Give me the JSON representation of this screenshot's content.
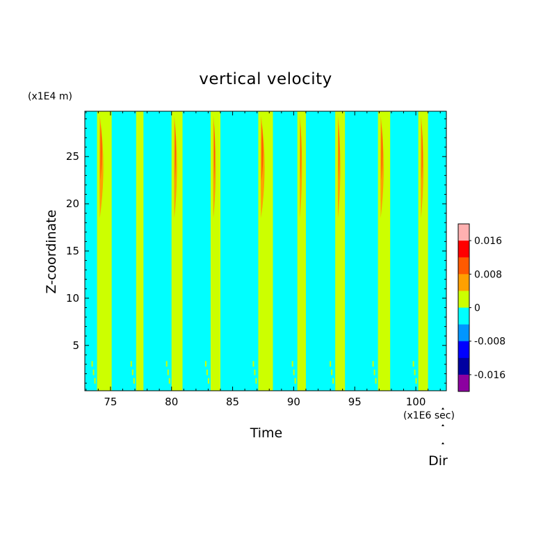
{
  "chart_data": {
    "type": "heatmap",
    "title": "vertical velocity",
    "xlabel": "Time",
    "ylabel": "Z-coordinate",
    "x_unit": "(x1E6 sec)",
    "y_unit": "(x1E4 m)",
    "xlim": [
      72.9,
      102.5
    ],
    "ylim": [
      0.2,
      29.8
    ],
    "x_ticks": [
      75,
      80,
      85,
      90,
      95,
      100
    ],
    "y_ticks": [
      5,
      10,
      15,
      20,
      25
    ],
    "background_level": "-0.004 to 0",
    "bands": [
      {
        "start": 73.9,
        "end": 75.1,
        "peak": "0.004 to 0.008"
      },
      {
        "start": 77.1,
        "end": 77.7,
        "peak": "0 to 0.004"
      },
      {
        "start": 80.0,
        "end": 80.9,
        "peak": "0.004 to 0.008"
      },
      {
        "start": 83.2,
        "end": 84.0,
        "peak": "0.004 to 0.008"
      },
      {
        "start": 87.1,
        "end": 88.3,
        "peak": "0.004 to 0.008"
      },
      {
        "start": 90.3,
        "end": 91.0,
        "peak": "0.004 to 0.008"
      },
      {
        "start": 93.4,
        "end": 94.2,
        "peak": "0.004 to 0.008"
      },
      {
        "start": 96.9,
        "end": 97.9,
        "peak": "0.004 to 0.008"
      },
      {
        "start": 100.2,
        "end": 101.0,
        "peak": "0.004 to 0.008"
      }
    ],
    "colorbar": {
      "labels": [
        "0.016",
        "0.008",
        "0",
        "-0.008",
        "-0.016"
      ],
      "levels": [
        {
          "range": "> 0.016",
          "color": "#ffb0b0"
        },
        {
          "range": "0.012 to 0.016",
          "color": "#ff0000"
        },
        {
          "range": "0.008 to 0.012",
          "color": "#ff5a00"
        },
        {
          "range": "0.004 to 0.008",
          "color": "#ffa000"
        },
        {
          "range": "0 to 0.004",
          "color": "#ccff00"
        },
        {
          "range": "-0.004 to 0",
          "color": "#00ffff"
        },
        {
          "range": "-0.008 to -0.004",
          "color": "#0096ff"
        },
        {
          "range": "-0.012 to -0.008",
          "color": "#0000ff"
        },
        {
          "range": "-0.016 to -0.012",
          "color": "#0000a0"
        },
        {
          "range": "< -0.016",
          "color": "#8c00a0"
        }
      ]
    },
    "direction_label": "Dir"
  }
}
